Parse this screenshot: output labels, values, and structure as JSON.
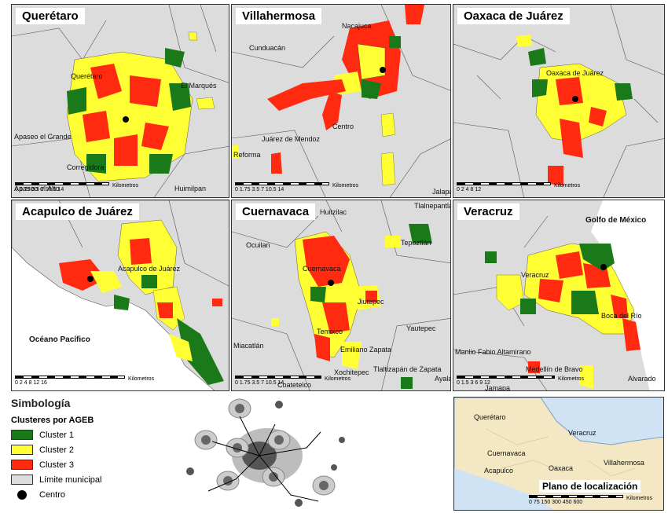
{
  "panels": [
    {
      "id": "queretaro",
      "title": "Querétaro",
      "places": [
        "Querétaro",
        "El Marqués",
        "Apaseo el Grande",
        "Corregidora",
        "Huimilpan",
        "Apaseo el Alto"
      ],
      "scale_ticks": [
        "0",
        "1.75 3.5",
        "7",
        "10.5",
        "14"
      ],
      "scale_unit": "Kilometros"
    },
    {
      "id": "villahermosa",
      "title": "Villahermosa",
      "places": [
        "Nacajuca",
        "Cunduacán",
        "Centro",
        "Reforma",
        "Jalapa",
        "Juárez de Mendoz"
      ],
      "scale_ticks": [
        "0",
        "1.75 3.5",
        "7",
        "10.5",
        "14"
      ],
      "scale_unit": "Kilometros"
    },
    {
      "id": "oaxaca",
      "title": "Oaxaca de Juárez",
      "places": [
        "Oaxaca de Juárez"
      ],
      "scale_ticks": [
        "0",
        "2",
        "4",
        "8",
        "12"
      ],
      "scale_unit": "Kilometros"
    },
    {
      "id": "acapulco",
      "title": "Acapulco de Juárez",
      "places": [
        "Acapulco de Juárez",
        "Océano Pacífico"
      ],
      "scale_ticks": [
        "0",
        "2",
        "4",
        "8",
        "12",
        "16"
      ],
      "scale_unit": "Kilometros"
    },
    {
      "id": "cuernavaca",
      "title": "Cuernavaca",
      "places": [
        "Tlalnepantla",
        "Ocuilan",
        "Tepoztlán",
        "Cuernavaca",
        "Jiutepec",
        "Temixco",
        "Emiliano Zapata",
        "Yautepec",
        "Miacatlán",
        "Xochitepec",
        "Tlaltizapán de Zapata",
        "Ayala",
        "Coatetelco",
        "Huitzilac"
      ],
      "scale_ticks": [
        "0",
        "1.75 3.5",
        "7",
        "10.5",
        "14"
      ],
      "scale_unit": "Kilometros"
    },
    {
      "id": "veracruz",
      "title": "Veracruz",
      "places": [
        "Golfo de México",
        "Veracruz",
        "Boca del Río",
        "Manlio Fabio Altamirano",
        "Medellín de Bravo",
        "Alvarado",
        "Jamapa"
      ],
      "scale_ticks": [
        "0",
        "1.5",
        "3",
        "6",
        "9",
        "12"
      ],
      "scale_unit": "Kilometros"
    }
  ],
  "legend": {
    "title": "Simbología",
    "subtitle": "Clusteres por AGEB",
    "items": [
      {
        "label": "Cluster 1",
        "color": "#1a7a1a",
        "kind": "swatch"
      },
      {
        "label": "Cluster 2",
        "color": "#ffff33",
        "kind": "swatch"
      },
      {
        "label": "Cluster 3",
        "color": "#ff2a10",
        "kind": "swatch"
      },
      {
        "label": "Límite municipal",
        "color": "#dcdcdc",
        "kind": "swatch"
      },
      {
        "label": "Centro",
        "color": "#000000",
        "kind": "dot"
      }
    ]
  },
  "inset": {
    "title": "Plano de localización",
    "places": [
      "Querétaro",
      "Veracruz",
      "Cuernavaca",
      "Oaxaca",
      "Villahermosa",
      "Acapulco"
    ],
    "scale_ticks": [
      "0",
      "75",
      "150",
      "300",
      "450",
      "600"
    ],
    "scale_unit": "Kilometros"
  }
}
